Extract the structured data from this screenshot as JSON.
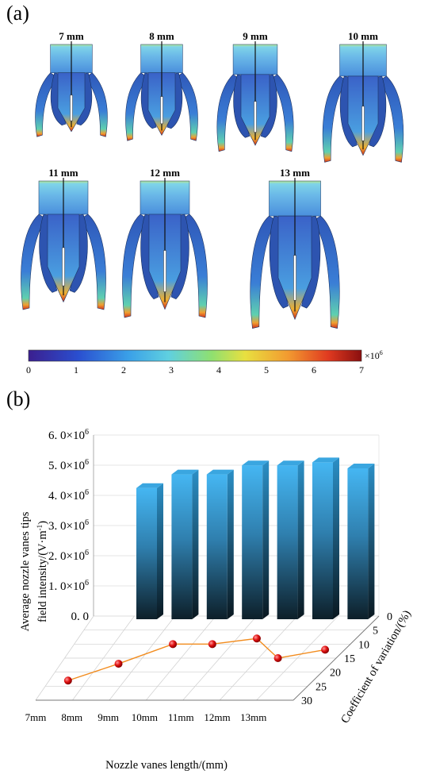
{
  "panel_a": {
    "label": "(a)",
    "nozzle_titles": [
      "7 mm",
      "8 mm",
      "9 mm",
      "10 mm",
      "11 mm",
      "12 mm",
      "13 mm"
    ],
    "colorbar": {
      "ticks": [
        "0",
        "1",
        "2",
        "3",
        "4",
        "5",
        "6",
        "7"
      ],
      "multiplier": "×10",
      "multiplier_exp": "6"
    }
  },
  "panel_b": {
    "label": "(b)"
  },
  "chart_data": {
    "type": "bar",
    "categories": [
      "7mm",
      "8mm",
      "9mm",
      "10mm",
      "11mm",
      "12mm",
      "13mm"
    ],
    "series": [
      {
        "values": [
          4.35,
          4.8,
          4.8,
          5.1,
          5.1,
          5.2,
          5.0
        ]
      },
      {
        "values": [
          23,
          17,
          10,
          10,
          8,
          15,
          12
        ]
      }
    ],
    "zlabel_line1": "Average nozzle vanes tips",
    "zlabel_line2": "field intensity/(V·m",
    "zlabel_unit_exp": "-1",
    "z_ticks": [
      "6. 0×10",
      "5. 0×10",
      "4. 0×10",
      "3. 0×10",
      "2. 0×10",
      "1. 0×10",
      "0. 0"
    ],
    "z_tick_exp": "6",
    "zlim": [
      0,
      6.0
    ],
    "xlabel": "Nozzle vanes length/(mm)",
    "ylabel": "Coefficient of variation/(%)",
    "y_ticks": [
      "0",
      "5",
      "10",
      "15",
      "20",
      "25",
      "30"
    ],
    "ylim": [
      0,
      30
    ],
    "colors": {
      "bar_top": "#45b6f2",
      "bar_bottom": "#0d1f29",
      "line": "#f28c1e",
      "marker": "#e01010"
    }
  }
}
